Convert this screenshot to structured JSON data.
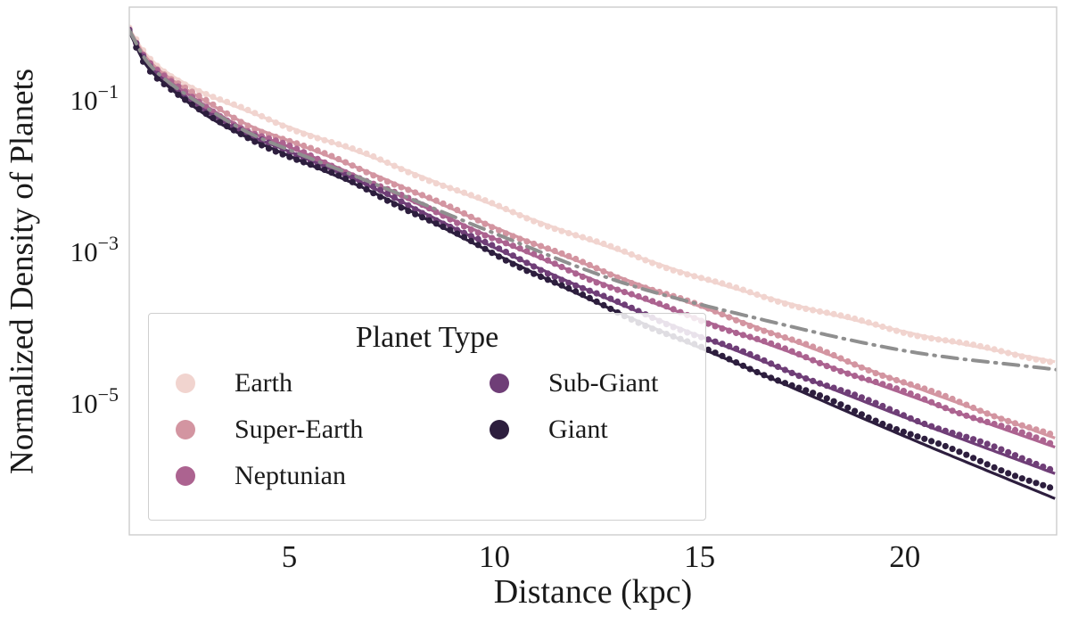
{
  "chart_data": {
    "type": "line",
    "title": "",
    "xlabel": "Distance (kpc)",
    "ylabel": "Normalized Density of Planets",
    "legend_title": "Planet Type",
    "legend_position": "lower left, two columns",
    "grid": false,
    "x_axis": {
      "range": [
        1.1,
        23.7
      ],
      "ticks": [
        5,
        10,
        15,
        20
      ]
    },
    "y_axis": {
      "scale": "log10",
      "range_log10": [
        -6.73,
        0.235
      ],
      "tick_exponents": [
        -1,
        -3,
        -5
      ]
    },
    "series": [
      {
        "name": "Earth",
        "color": "#F1D4CF",
        "marker": "circle",
        "line": "solid",
        "x": [
          1.1,
          1.5,
          2,
          3,
          4,
          5,
          7,
          10,
          13,
          16,
          20,
          23.7
        ],
        "log10_y": [
          -0.05,
          -0.38,
          -0.62,
          -0.92,
          -1.14,
          -1.35,
          -1.74,
          -2.38,
          -2.97,
          -3.5,
          -4.05,
          -4.45
        ]
      },
      {
        "name": "Super-Earth",
        "color": "#D395A1",
        "marker": "circle",
        "line": "solid",
        "x": [
          1.1,
          1.5,
          2,
          3,
          4,
          5,
          7,
          10,
          13,
          16,
          20,
          23.7
        ],
        "log10_y": [
          -0.06,
          -0.42,
          -0.67,
          -1.02,
          -1.32,
          -1.53,
          -1.96,
          -2.67,
          -3.32,
          -3.91,
          -4.73,
          -5.46
        ]
      },
      {
        "name": "Neptunian",
        "color": "#AC6390",
        "marker": "circle",
        "line": "solid",
        "x": [
          1.1,
          1.5,
          2,
          3,
          4,
          5,
          7,
          10,
          13,
          16,
          20,
          23.7
        ],
        "log10_y": [
          -0.07,
          -0.45,
          -0.71,
          -1.08,
          -1.4,
          -1.61,
          -2.08,
          -2.82,
          -3.49,
          -4.08,
          -4.87,
          -5.58
        ]
      },
      {
        "name": "Sub-Giant",
        "color": "#6F3E77",
        "marker": "circle",
        "line": "solid",
        "x": [
          1.1,
          1.5,
          2,
          3,
          4,
          5,
          7,
          10,
          13,
          16,
          20,
          23.7
        ],
        "log10_y": [
          -0.08,
          -0.48,
          -0.75,
          -1.15,
          -1.45,
          -1.67,
          -2.14,
          -2.94,
          -3.67,
          -4.32,
          -5.18,
          -5.93
        ]
      },
      {
        "name": "Giant",
        "color": "#2D1E3E",
        "marker": "circle",
        "line": "solid",
        "x": [
          1.1,
          1.5,
          2,
          3,
          4,
          5,
          7,
          10,
          13,
          16,
          20,
          23.7
        ],
        "log10_y": [
          -0.09,
          -0.52,
          -0.79,
          -1.2,
          -1.49,
          -1.73,
          -2.2,
          -3.02,
          -3.79,
          -4.49,
          -5.43,
          -6.26
        ]
      }
    ],
    "reference_line": {
      "label": "",
      "style": "dash-dot",
      "color": "#8F8F8F",
      "x": [
        1.1,
        1.5,
        2,
        3,
        4,
        5,
        7,
        10,
        13,
        16,
        20,
        23.7
      ],
      "log10_y": [
        -0.07,
        -0.46,
        -0.73,
        -1.1,
        -1.42,
        -1.65,
        -2.08,
        -2.75,
        -3.38,
        -3.82,
        -4.3,
        -4.55
      ]
    }
  },
  "colors": {
    "text": "#1a1a1a",
    "spine": "#cccccc",
    "background": "#ffffff"
  }
}
